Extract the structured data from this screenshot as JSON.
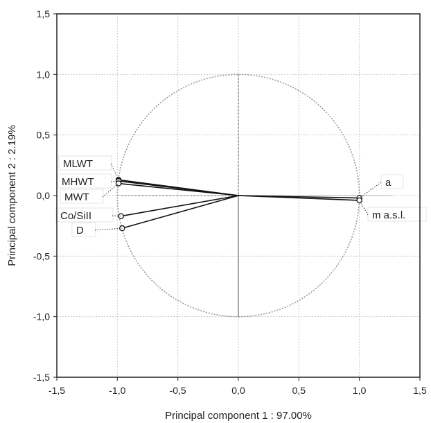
{
  "chart_data": {
    "type": "scatter",
    "subtype": "pca-correlation-circle",
    "title": "",
    "xlabel": "Principal component 1 : 97.00%",
    "ylabel": "Principal component 2 :  2.19%",
    "xlim": [
      -1.5,
      1.5
    ],
    "ylim": [
      -1.5,
      1.5
    ],
    "xticks": [
      "-1,5",
      "-1,0",
      "-0,5",
      "0,0",
      "0,5",
      "1,0",
      "1,5"
    ],
    "yticks": [
      "1,5",
      "1,0",
      "0,5",
      "0,0",
      "-0,5",
      "-1,0",
      "-1,5"
    ],
    "grid": true,
    "unit_circle": true,
    "points": [
      {
        "label": "MLWT",
        "x": -0.99,
        "y": 0.13
      },
      {
        "label": "MHWT",
        "x": -0.99,
        "y": 0.12
      },
      {
        "label": "MWT",
        "x": -0.99,
        "y": 0.1
      },
      {
        "label": "Co/SiII",
        "x": -0.97,
        "y": -0.17
      },
      {
        "label": "D",
        "x": -0.96,
        "y": -0.27
      },
      {
        "label": "a",
        "x": 1.0,
        "y": -0.02
      },
      {
        "label": "m a.s.l.",
        "x": 1.0,
        "y": -0.04
      }
    ]
  }
}
